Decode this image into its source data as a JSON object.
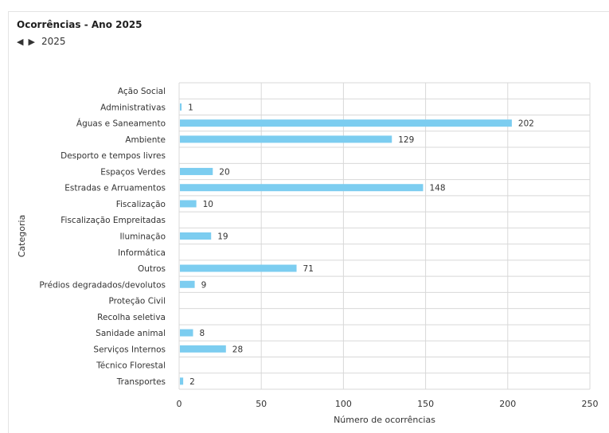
{
  "header": {
    "title": "Ocorrências - Ano 2025",
    "year": "2025",
    "prev_icon": "triangle-left-icon",
    "next_icon": "triangle-right-icon"
  },
  "colors": {
    "bar": "#7ccdf0",
    "grid": "#d8d8d8",
    "text": "#333333"
  },
  "chart_data": {
    "type": "bar",
    "orientation": "horizontal",
    "categories": [
      "Ação Social",
      "Administrativas",
      "Águas e Saneamento",
      "Ambiente",
      "Desporto e tempos livres",
      "Espaços Verdes",
      "Estradas e Arruamentos",
      "Fiscalização",
      "Fiscalização Empreitadas",
      "Iluminação",
      "Informática",
      "Outros",
      "Prédios degradados/devolutos",
      "Proteção Civil",
      "Recolha seletiva",
      "Sanidade animal",
      "Serviços Internos",
      "Técnico Florestal",
      "Transportes"
    ],
    "values": [
      null,
      1,
      202,
      129,
      null,
      20,
      148,
      10,
      null,
      19,
      null,
      71,
      9,
      null,
      null,
      8,
      28,
      null,
      2
    ],
    "xlabel": "Número de ocorrências",
    "ylabel": "Categoria",
    "xlim": [
      0,
      250
    ],
    "xticks": [
      0,
      50,
      100,
      150,
      200,
      250
    ],
    "grid": true,
    "data_labels": true
  }
}
